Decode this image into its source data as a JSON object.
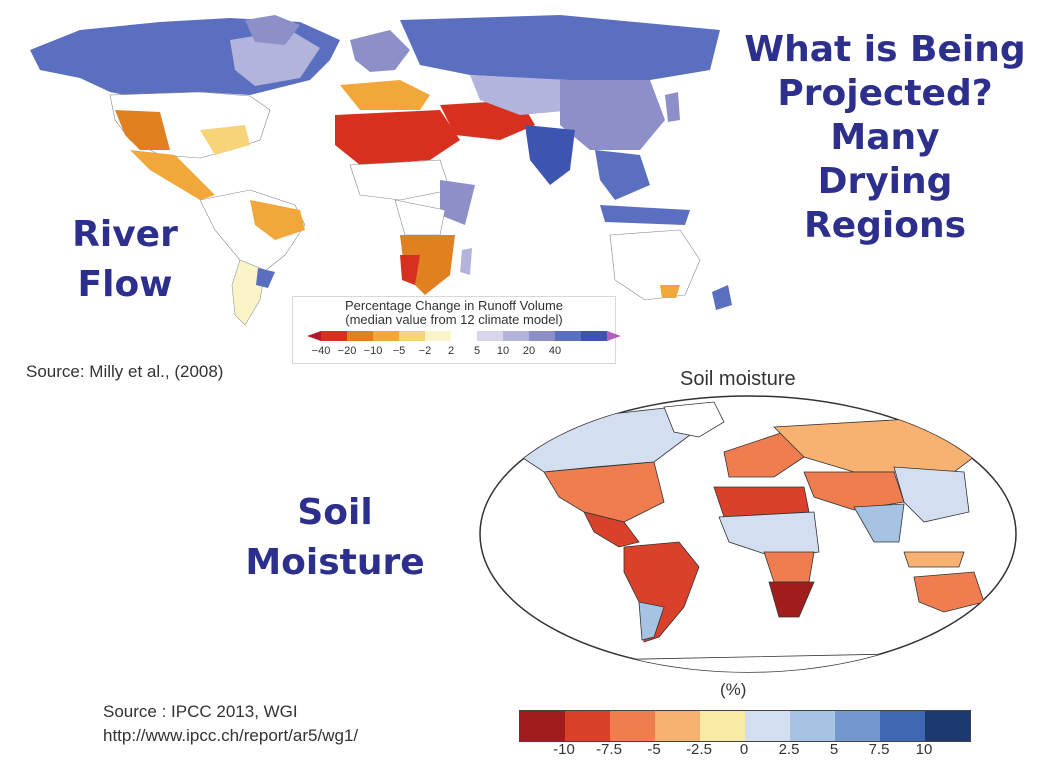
{
  "headline": [
    "What is Being",
    "Projected?",
    "Many",
    "Drying Regions"
  ],
  "river": {
    "label_lines": [
      "River",
      "Flow"
    ],
    "legend_title": "Percentage Change in Runoff Volume",
    "legend_subtitle": "(median value from 12 climate model)",
    "legend_ticks": [
      "−40",
      "−20",
      "−10",
      "−5",
      "−2",
      "2",
      "5",
      "10",
      "20",
      "40"
    ],
    "legend_colors": [
      "#b2182b",
      "#d7301f",
      "#e08020",
      "#f1a73a",
      "#f7d37a",
      "#fbf4c8",
      "#ffffff",
      "#d7d5ea",
      "#b3b4dc",
      "#8d8fc9",
      "#5a6fbf",
      "#3d55b0",
      "#b45fc0"
    ],
    "source": "Source: Milly et al., (2008)"
  },
  "soil": {
    "title": "Soil moisture",
    "label_lines": [
      "Soil",
      "Moisture"
    ],
    "unit": "(%)",
    "legend_ticks": [
      "-10",
      "-7.5",
      "-5",
      "-2.5",
      "0",
      "2.5",
      "5",
      "7.5",
      "10"
    ],
    "legend_colors": [
      "#a11d1d",
      "#d9412b",
      "#ef7d4f",
      "#f7b272",
      "#f9eba6",
      "#d3dff0",
      "#a7c3e3",
      "#7597d0",
      "#3f67b2",
      "#1d3a6e"
    ],
    "source_lines": [
      "Source : IPCC 2013, WGI",
      "http://www.ipcc.ch/report/ar5/wg1/"
    ]
  }
}
